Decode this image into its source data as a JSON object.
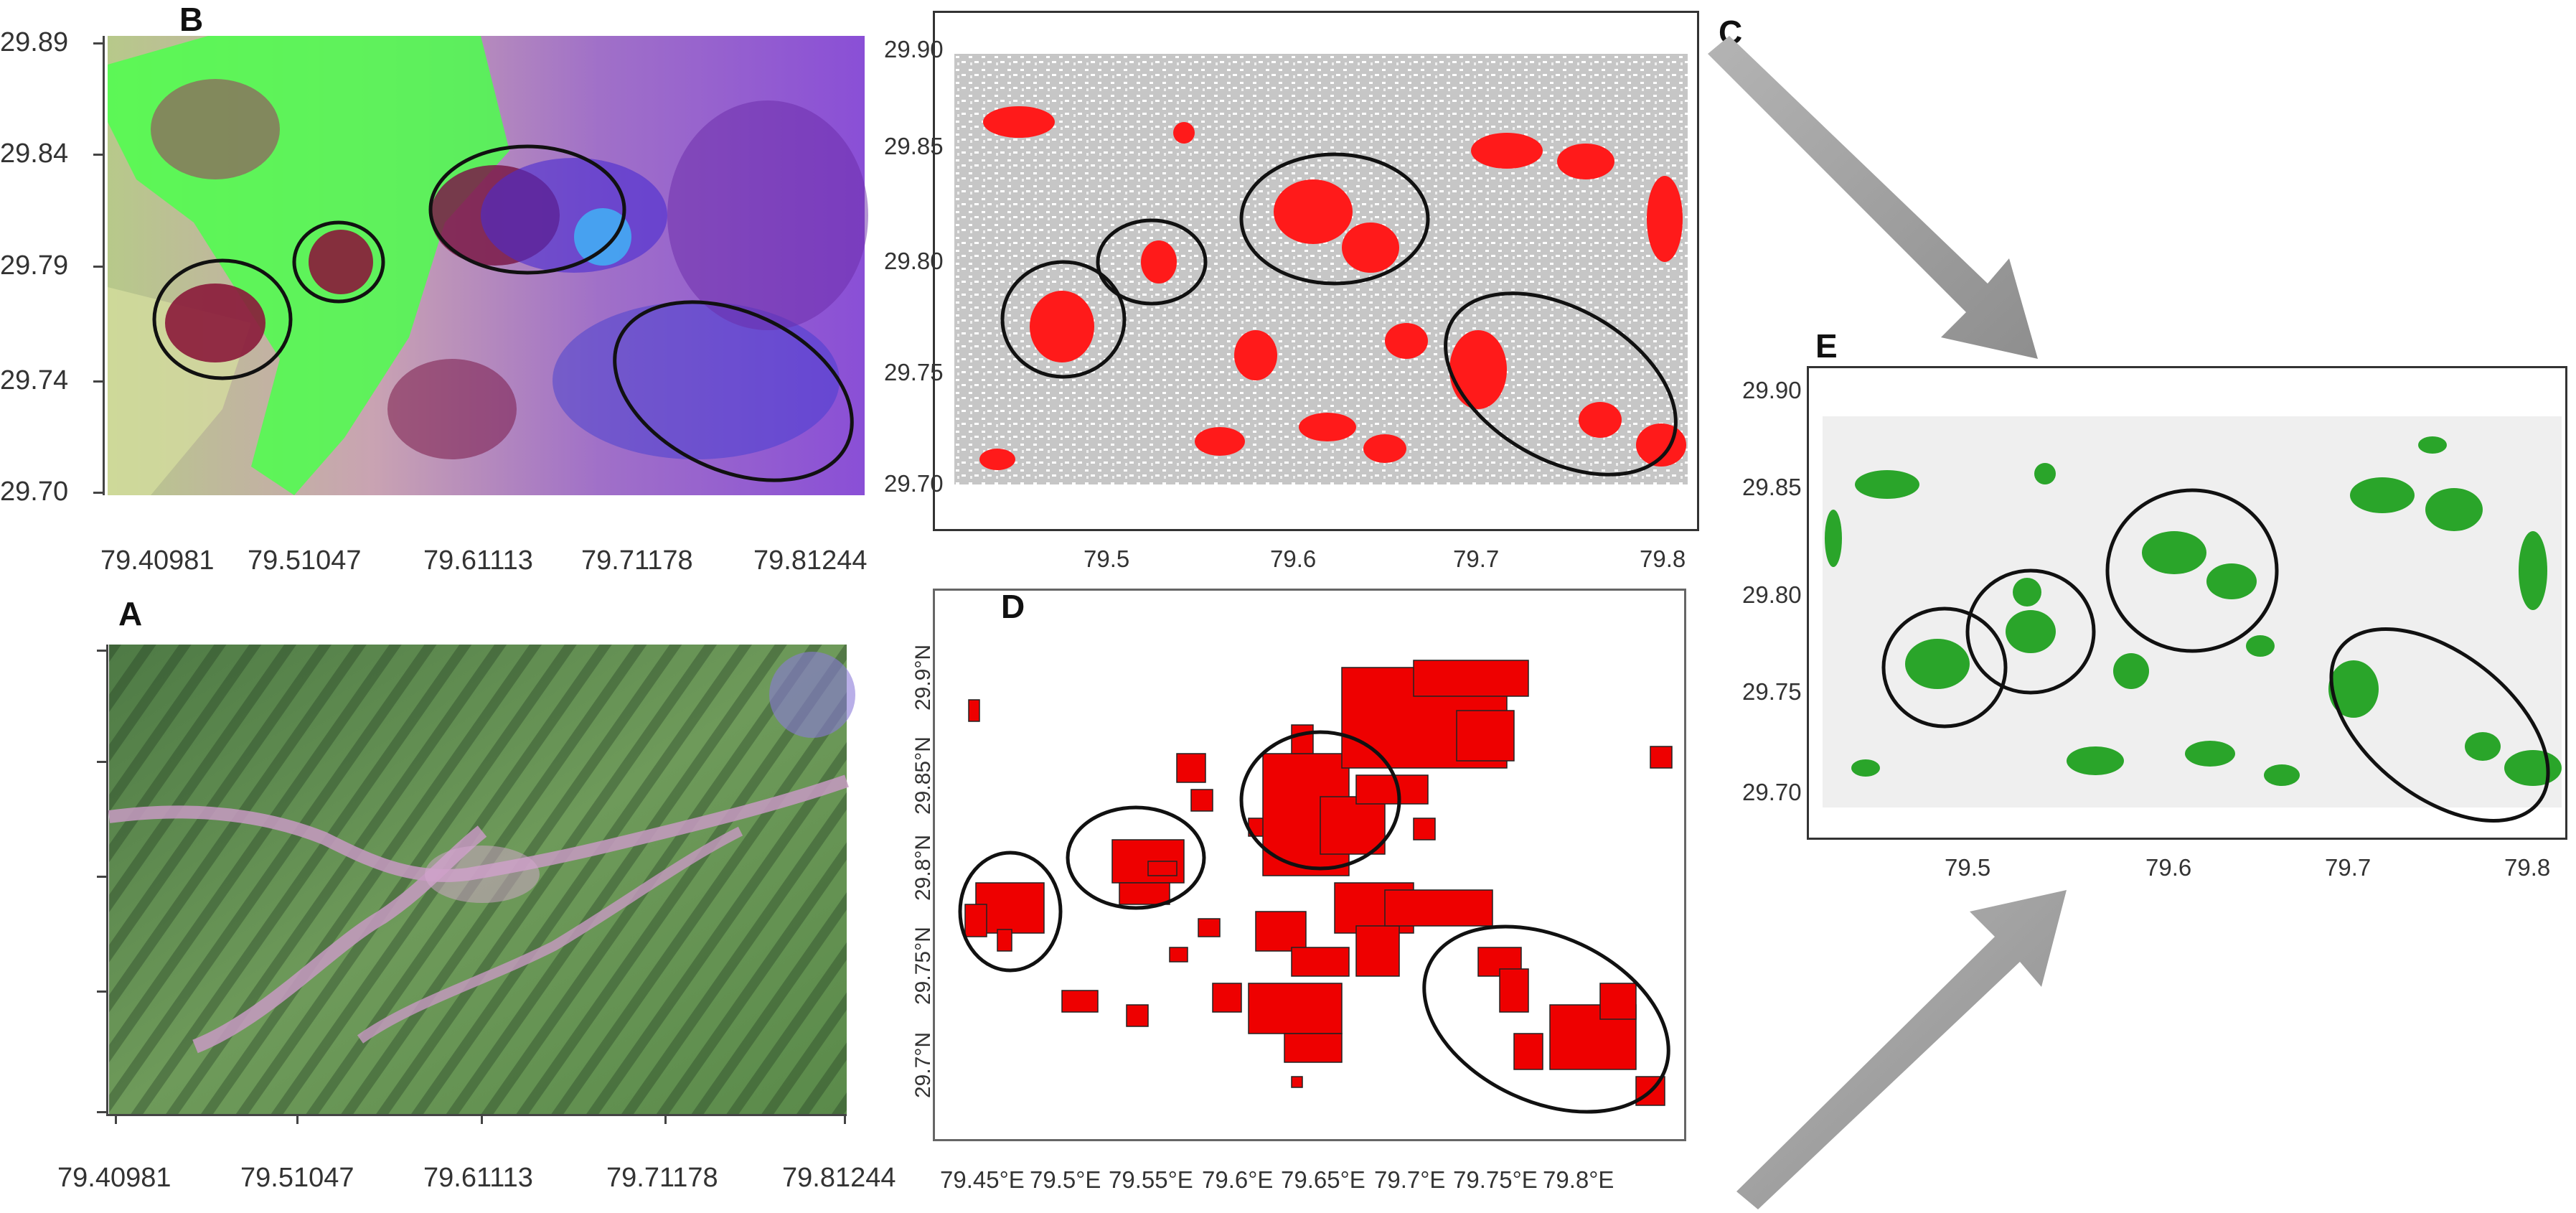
{
  "panels": {
    "B": {
      "label": "B",
      "y_ticks": [
        "29.89",
        "29.84",
        "29.79",
        "29.74",
        "29.70"
      ],
      "x_ticks": [
        "79.40981",
        "79.51047",
        "79.61113",
        "79.71178",
        "79.81244"
      ]
    },
    "A": {
      "label": "A",
      "x_ticks": [
        "79.40981",
        "79.51047",
        "79.61113",
        "79.71178",
        "79.81244"
      ]
    },
    "C": {
      "label": "C",
      "y_ticks": [
        "29.90",
        "29.85",
        "29.80",
        "29.75",
        "29.70"
      ],
      "x_ticks": [
        "79.5",
        "79.6",
        "79.7",
        "79.8"
      ]
    },
    "D": {
      "label": "D",
      "y_ticks": [
        "29.9°N",
        "29.85°N",
        "29.8°N",
        "29.75°N",
        "29.7°N"
      ],
      "x_ticks": [
        "79.45°E",
        "79.5°E",
        "79.55°E",
        "79.6°E",
        "79.65°E",
        "79.7°E",
        "79.75°E",
        "79.8°E"
      ]
    },
    "E": {
      "label": "E",
      "y_ticks": [
        "29.90",
        "29.85",
        "29.80",
        "29.75",
        "29.70"
      ],
      "x_ticks": [
        "79.5",
        "79.6",
        "79.7",
        "79.8"
      ]
    }
  },
  "colors": {
    "burn_red": "#ff1a1a",
    "burn_green": "#2aa52a",
    "gray_bg": "#c8c8c8",
    "arrow": "#a6a6a6"
  }
}
